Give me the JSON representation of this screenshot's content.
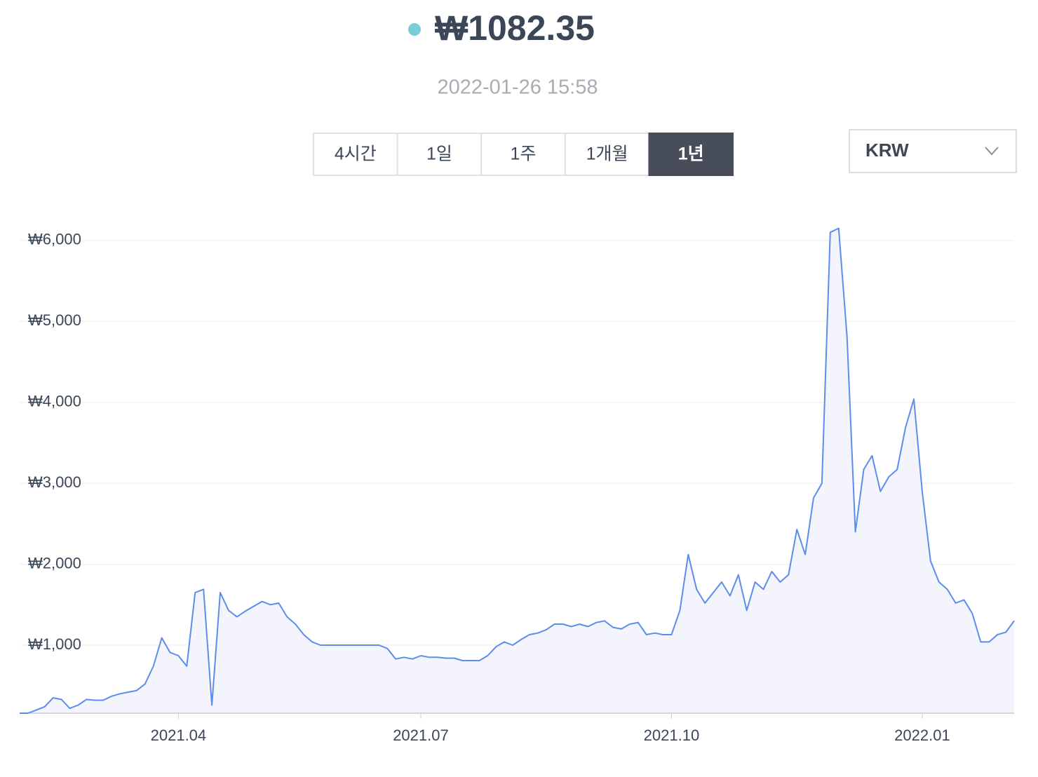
{
  "header": {
    "price": "₩1082.35",
    "timestamp": "2022-01-26 15:58",
    "tabs": [
      "4시간",
      "1일",
      "1주",
      "1개월",
      "1년"
    ],
    "active_tab": 4,
    "currency": "KRW"
  },
  "chart_data": {
    "type": "area",
    "color": "#5b8def",
    "fill": "#f4f5fc",
    "grid": true,
    "ylim": [
      160,
      6250
    ],
    "yticks": [
      {
        "value": 1000,
        "label": "₩1,000"
      },
      {
        "value": 2000,
        "label": "₩2,000"
      },
      {
        "value": 3000,
        "label": "₩3,000"
      },
      {
        "value": 4000,
        "label": "₩4,000"
      },
      {
        "value": 5000,
        "label": "₩5,000"
      },
      {
        "value": 6000,
        "label": "₩6,000"
      }
    ],
    "categories": [
      null,
      null,
      null,
      null,
      null,
      null,
      null,
      null,
      null,
      null,
      null,
      null,
      null,
      null,
      null,
      null,
      null,
      null,
      null,
      "2021.04",
      null,
      null,
      null,
      null,
      null,
      null,
      null,
      null,
      null,
      null,
      null,
      null,
      null,
      null,
      null,
      null,
      null,
      null,
      null,
      null,
      null,
      null,
      null,
      null,
      null,
      null,
      null,
      null,
      "2021.07",
      null,
      null,
      null,
      null,
      null,
      null,
      null,
      null,
      null,
      null,
      null,
      null,
      null,
      null,
      null,
      null,
      null,
      null,
      null,
      null,
      null,
      null,
      null,
      null,
      null,
      null,
      null,
      null,
      null,
      "2021.10",
      null,
      null,
      null,
      null,
      null,
      null,
      null,
      null,
      null,
      null,
      null,
      null,
      null,
      null,
      null,
      null,
      null,
      null,
      null,
      null,
      null,
      null,
      null,
      null,
      null,
      null,
      null,
      null,
      null,
      "2022.01",
      null,
      null,
      null,
      null,
      null,
      null,
      null,
      null,
      null,
      null,
      null
    ],
    "values": [
      160,
      160,
      200,
      240,
      350,
      330,
      220,
      260,
      330,
      320,
      320,
      370,
      400,
      420,
      440,
      520,
      740,
      1090,
      910,
      870,
      740,
      1650,
      1690,
      260,
      1650,
      1430,
      1350,
      1420,
      1480,
      1540,
      1500,
      1520,
      1350,
      1260,
      1130,
      1040,
      1000,
      1000,
      1000,
      1000,
      1000,
      1000,
      1000,
      1000,
      960,
      830,
      850,
      830,
      870,
      850,
      850,
      840,
      840,
      810,
      810,
      810,
      870,
      980,
      1040,
      1000,
      1070,
      1130,
      1150,
      1190,
      1260,
      1260,
      1230,
      1260,
      1230,
      1280,
      1300,
      1220,
      1200,
      1260,
      1280,
      1130,
      1150,
      1130,
      1130,
      1430,
      2120,
      1690,
      1520,
      1650,
      1780,
      1610,
      1870,
      1430,
      1780,
      1690,
      1910,
      1780,
      1870,
      2430,
      2120,
      2820,
      3000,
      6100,
      6150,
      4810,
      2400,
      3170,
      3340,
      2900,
      3080,
      3170,
      3690,
      4040,
      2900,
      2040,
      1780,
      1690,
      1520,
      1560,
      1390,
      1040,
      1040,
      1130,
      1160,
      1300
    ]
  }
}
